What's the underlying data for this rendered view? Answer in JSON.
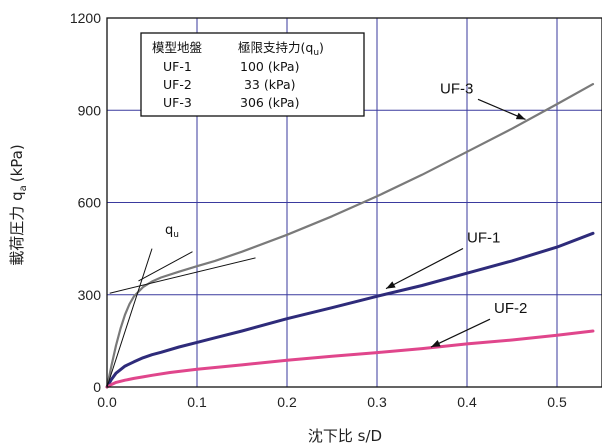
{
  "chart_data": {
    "type": "line",
    "title": "",
    "xlabel": "沈下比 s/D",
    "ylabel": "載荷圧力 q",
    "ylabel_sub": "a",
    "ylabel_unit": "(kPa)",
    "xlim": [
      0,
      0.55
    ],
    "ylim": [
      0,
      1200
    ],
    "x_ticks": [
      0.0,
      0.1,
      0.2,
      0.3,
      0.4,
      0.5
    ],
    "x_tick_labels": [
      "0.0",
      "0.1",
      "0.2",
      "0.3",
      "0.4",
      "0.5"
    ],
    "y_ticks": [
      0,
      300,
      600,
      900,
      1200
    ],
    "y_tick_labels": [
      "0",
      "300",
      "600",
      "900",
      "1200"
    ],
    "grid": true,
    "legend_box": {
      "header_ground": "模型地盤",
      "header_capacity": "極限支持力(q",
      "header_capacity_sub": "u",
      "header_capacity_close": ")",
      "rows": [
        {
          "ground": "UF-1",
          "capacity": "100 (kPa)"
        },
        {
          "ground": "UF-2",
          "capacity": " 33 (kPa)"
        },
        {
          "ground": "UF-3",
          "capacity": "306 (kPa)"
        }
      ]
    },
    "qu_label": "q",
    "qu_label_sub": "u",
    "series": [
      {
        "name": "UF-3",
        "color": "#7a7a7a",
        "x": [
          0,
          0.005,
          0.01,
          0.015,
          0.02,
          0.025,
          0.03,
          0.04,
          0.05,
          0.06,
          0.08,
          0.1,
          0.12,
          0.15,
          0.2,
          0.25,
          0.3,
          0.35,
          0.4,
          0.45,
          0.5,
          0.54
        ],
        "y": [
          0,
          70,
          135,
          190,
          235,
          270,
          295,
          325,
          343,
          356,
          375,
          393,
          410,
          440,
          495,
          555,
          620,
          690,
          765,
          840,
          920,
          985
        ]
      },
      {
        "name": "UF-1",
        "color": "#2e2b7a",
        "x": [
          0,
          0.005,
          0.01,
          0.02,
          0.03,
          0.04,
          0.05,
          0.06,
          0.08,
          0.1,
          0.12,
          0.15,
          0.2,
          0.25,
          0.3,
          0.35,
          0.4,
          0.45,
          0.5,
          0.54
        ],
        "y": [
          0,
          25,
          45,
          68,
          82,
          95,
          105,
          113,
          130,
          145,
          160,
          182,
          222,
          258,
          295,
          330,
          370,
          410,
          455,
          500
        ]
      },
      {
        "name": "UF-2",
        "color": "#e0468c",
        "x": [
          0,
          0.005,
          0.01,
          0.02,
          0.03,
          0.04,
          0.05,
          0.07,
          0.1,
          0.15,
          0.2,
          0.25,
          0.3,
          0.35,
          0.4,
          0.45,
          0.5,
          0.54
        ],
        "y": [
          0,
          8,
          15,
          22,
          28,
          33,
          38,
          47,
          58,
          72,
          87,
          100,
          112,
          125,
          140,
          153,
          168,
          182
        ]
      }
    ],
    "annotations": [
      {
        "text": "UF-3",
        "x": 0.37,
        "y": 955,
        "arrow_to": [
          0.465,
          870
        ]
      },
      {
        "text": "UF-1",
        "x": 0.4,
        "y": 470,
        "arrow_to": [
          0.31,
          320
        ]
      },
      {
        "text": "UF-2",
        "x": 0.43,
        "y": 240,
        "arrow_to": [
          0.36,
          130
        ]
      }
    ],
    "tangent_lines": [
      {
        "from": [
          0.0,
          0.0
        ],
        "to": [
          0.05,
          450
        ]
      },
      {
        "from": [
          0.003,
          305
        ],
        "to": [
          0.165,
          420
        ]
      },
      {
        "from": [
          0.035,
          345
        ],
        "to": [
          0.095,
          440
        ]
      }
    ]
  }
}
